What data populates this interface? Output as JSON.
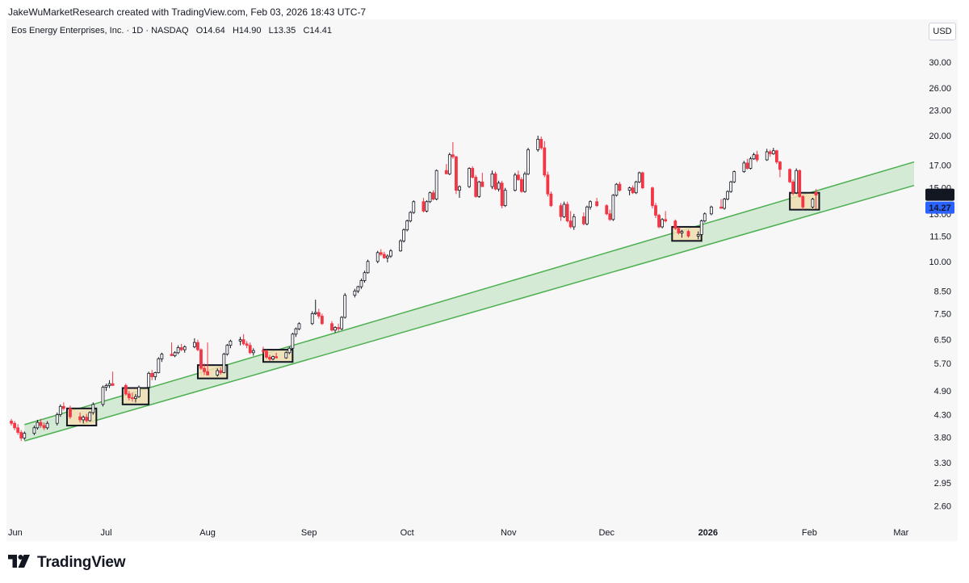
{
  "header": {
    "attribution": "JakeWuMarketResearch created with TradingView.com, Feb 03, 2026 18:43 UTC-7"
  },
  "legend": {
    "symbol_name": "Eos Energy Enterprises, Inc.",
    "interval": "1D",
    "exchange": "NASDAQ",
    "open_label": "O",
    "open": "14.64",
    "high_label": "H",
    "high": "14.90",
    "low_label": "L",
    "low": "13.35",
    "close_label": "C",
    "close": "14.41"
  },
  "currency": "USD",
  "price_tags": {
    "last": "14.41",
    "prev": "14.27"
  },
  "colors": {
    "up": "#ffffff",
    "up_border": "#131722",
    "down": "#f23645",
    "channel_line": "#4caf50",
    "channel_fill": "#c8e6c9",
    "box_fill": "#f3dfb5",
    "box_border": "#131722",
    "last_tag": "#131722",
    "prev_tag": "#2962ff"
  },
  "footer": {
    "brand": "TradingView",
    "logo_icon": "tradingview-logo-icon"
  },
  "chart_data": {
    "type": "candlestick",
    "title": "Eos Energy Enterprises, Inc. · 1D · NASDAQ",
    "y_scale": "log",
    "ylim": [
      2.45,
      33.5
    ],
    "y_ticks": [
      "30.00",
      "26.00",
      "23.00",
      "20.00",
      "17.00",
      "15.00",
      "13.00",
      "11.50",
      "10.00",
      "8.50",
      "7.50",
      "6.50",
      "5.70",
      "4.90",
      "4.30",
      "3.80",
      "3.30",
      "2.95",
      "2.60"
    ],
    "x_ticks": [
      "Jun",
      "Jul",
      "Aug",
      "Sep",
      "Oct",
      "Nov",
      "Dec",
      "2026",
      "Feb",
      "Mar"
    ],
    "x_tick_bold": [
      "2026"
    ],
    "x_tick_dates": [
      "2025-06-01",
      "2025-07-01",
      "2025-08-01",
      "2025-09-01",
      "2025-10-01",
      "2025-11-01",
      "2025-12-01",
      "2026-01-01",
      "2026-02-01",
      "2026-03-01"
    ],
    "xlim": [
      "2025-06-01",
      "2026-03-05"
    ],
    "channel": {
      "lower": {
        "start": [
          "2025-06-06",
          3.72
        ],
        "end": [
          "2026-03-05",
          15.2
        ]
      },
      "upper": {
        "start": [
          "2025-06-06",
          4.07
        ],
        "end": [
          "2026-03-05",
          17.3
        ]
      }
    },
    "highlight_boxes": [
      {
        "from": "2025-06-20",
        "to": "2025-06-27",
        "low": 4.05,
        "high": 4.45
      },
      {
        "from": "2025-07-07",
        "to": "2025-07-13",
        "low": 4.55,
        "high": 4.98
      },
      {
        "from": "2025-07-30",
        "to": "2025-08-06",
        "low": 5.25,
        "high": 5.65
      },
      {
        "from": "2025-08-19",
        "to": "2025-08-26",
        "low": 5.75,
        "high": 6.15
      },
      {
        "from": "2025-12-22",
        "to": "2025-12-29",
        "low": 11.2,
        "high": 12.1
      },
      {
        "from": "2026-01-27",
        "to": "2026-02-03",
        "low": 13.3,
        "high": 14.6
      }
    ],
    "candles": [
      [
        "2025-06-02",
        4.15,
        4.2,
        4.05,
        4.1
      ],
      [
        "2025-06-03",
        4.1,
        4.15,
        3.95,
        4.0
      ],
      [
        "2025-06-04",
        4.0,
        4.08,
        3.85,
        3.9
      ],
      [
        "2025-06-05",
        3.9,
        3.95,
        3.72,
        3.78
      ],
      [
        "2025-06-06",
        3.78,
        3.92,
        3.74,
        3.88
      ],
      [
        "2025-06-09",
        3.88,
        4.05,
        3.84,
        4.0
      ],
      [
        "2025-06-10",
        4.0,
        4.18,
        3.96,
        4.12
      ],
      [
        "2025-06-11",
        4.12,
        4.2,
        4.0,
        4.05
      ],
      [
        "2025-06-12",
        4.05,
        4.12,
        3.95,
        4.0
      ],
      [
        "2025-06-13",
        4.0,
        4.15,
        3.96,
        4.1
      ],
      [
        "2025-06-16",
        4.1,
        4.35,
        4.05,
        4.3
      ],
      [
        "2025-06-17",
        4.3,
        4.55,
        4.25,
        4.5
      ],
      [
        "2025-06-18",
        4.5,
        4.6,
        4.4,
        4.45
      ],
      [
        "2025-06-20",
        4.45,
        4.52,
        4.2,
        4.25
      ],
      [
        "2025-06-23",
        4.25,
        4.35,
        4.12,
        4.18
      ],
      [
        "2025-06-24",
        4.18,
        4.28,
        4.1,
        4.24
      ],
      [
        "2025-06-25",
        4.24,
        4.32,
        4.12,
        4.16
      ],
      [
        "2025-06-26",
        4.16,
        4.38,
        4.14,
        4.35
      ],
      [
        "2025-06-27",
        4.35,
        4.6,
        4.3,
        4.55
      ],
      [
        "2025-06-30",
        4.55,
        5.05,
        4.5,
        5.0
      ],
      [
        "2025-07-01",
        5.0,
        5.1,
        4.9,
        5.05
      ],
      [
        "2025-07-02",
        5.05,
        5.2,
        4.98,
        5.1
      ],
      [
        "2025-07-03",
        5.1,
        5.45,
        5.05,
        5.05
      ],
      [
        "2025-07-07",
        5.05,
        5.1,
        4.78,
        4.82
      ],
      [
        "2025-07-08",
        4.82,
        4.9,
        4.65,
        4.72
      ],
      [
        "2025-07-09",
        4.72,
        4.85,
        4.62,
        4.7
      ],
      [
        "2025-07-10",
        4.7,
        4.82,
        4.6,
        4.75
      ],
      [
        "2025-07-11",
        4.75,
        5.05,
        4.72,
        5.0
      ],
      [
        "2025-07-14",
        5.0,
        5.45,
        4.98,
        5.4
      ],
      [
        "2025-07-15",
        5.4,
        5.5,
        5.2,
        5.3
      ],
      [
        "2025-07-16",
        5.3,
        5.45,
        5.2,
        5.42
      ],
      [
        "2025-07-17",
        5.42,
        5.9,
        5.4,
        5.85
      ],
      [
        "2025-07-18",
        5.85,
        6.05,
        5.75,
        6.0
      ],
      [
        "2025-07-21",
        6.0,
        6.4,
        5.95,
        5.95
      ],
      [
        "2025-07-22",
        5.95,
        6.1,
        5.9,
        6.05
      ],
      [
        "2025-07-23",
        6.05,
        6.3,
        6.0,
        6.22
      ],
      [
        "2025-07-24",
        6.22,
        6.35,
        6.1,
        6.15
      ],
      [
        "2025-07-25",
        6.15,
        6.3,
        6.05,
        6.25
      ],
      [
        "2025-07-28",
        6.25,
        6.55,
        6.2,
        6.4
      ],
      [
        "2025-07-29",
        6.4,
        6.5,
        6.1,
        6.15
      ],
      [
        "2025-07-30",
        6.15,
        6.2,
        5.5,
        5.55
      ],
      [
        "2025-07-31",
        5.55,
        5.7,
        5.35,
        5.45
      ],
      [
        "2025-08-01",
        5.45,
        6.4,
        5.35,
        5.35
      ],
      [
        "2025-08-04",
        5.35,
        5.55,
        5.3,
        5.48
      ],
      [
        "2025-08-05",
        5.48,
        5.58,
        5.36,
        5.42
      ],
      [
        "2025-08-06",
        5.42,
        6.05,
        5.4,
        6.0
      ],
      [
        "2025-08-07",
        6.0,
        6.35,
        5.95,
        6.3
      ],
      [
        "2025-08-08",
        6.3,
        6.5,
        6.2,
        6.45
      ],
      [
        "2025-08-11",
        6.45,
        6.6,
        6.3,
        6.5
      ],
      [
        "2025-08-12",
        6.5,
        6.7,
        6.3,
        6.35
      ],
      [
        "2025-08-13",
        6.35,
        6.45,
        6.2,
        6.3
      ],
      [
        "2025-08-14",
        6.3,
        6.4,
        6.0,
        6.05
      ],
      [
        "2025-08-15",
        6.05,
        6.2,
        5.95,
        6.12
      ],
      [
        "2025-08-18",
        6.12,
        6.25,
        6.0,
        6.1
      ],
      [
        "2025-08-19",
        6.1,
        6.15,
        5.85,
        5.9
      ],
      [
        "2025-08-20",
        5.9,
        5.98,
        5.78,
        5.84
      ],
      [
        "2025-08-21",
        5.84,
        5.95,
        5.8,
        5.92
      ],
      [
        "2025-08-22",
        5.92,
        6.05,
        5.86,
        5.88
      ],
      [
        "2025-08-25",
        5.88,
        6.1,
        5.85,
        6.05
      ],
      [
        "2025-08-26",
        6.05,
        6.25,
        6.0,
        6.2
      ],
      [
        "2025-08-27",
        6.2,
        6.75,
        6.15,
        6.7
      ],
      [
        "2025-08-28",
        6.7,
        6.95,
        6.6,
        6.9
      ],
      [
        "2025-08-29",
        6.9,
        7.15,
        6.85,
        7.1
      ],
      [
        "2025-09-02",
        7.1,
        7.6,
        7.05,
        7.5
      ],
      [
        "2025-09-03",
        7.5,
        8.1,
        7.45,
        7.55
      ],
      [
        "2025-09-04",
        7.55,
        7.7,
        7.3,
        7.4
      ],
      [
        "2025-09-05",
        7.4,
        7.5,
        7.05,
        7.1
      ],
      [
        "2025-09-08",
        7.1,
        7.2,
        6.8,
        6.85
      ],
      [
        "2025-09-09",
        6.85,
        7.0,
        6.75,
        6.95
      ],
      [
        "2025-09-10",
        6.95,
        7.1,
        6.8,
        6.9
      ],
      [
        "2025-09-11",
        6.9,
        7.4,
        6.85,
        7.35
      ],
      [
        "2025-09-12",
        7.35,
        8.4,
        7.3,
        8.3
      ],
      [
        "2025-09-15",
        8.3,
        8.6,
        8.2,
        8.5
      ],
      [
        "2025-09-16",
        8.5,
        8.75,
        8.4,
        8.7
      ],
      [
        "2025-09-17",
        8.7,
        9.1,
        8.6,
        9.0
      ],
      [
        "2025-09-18",
        9.0,
        9.5,
        8.9,
        9.4
      ],
      [
        "2025-09-19",
        9.4,
        10.1,
        9.35,
        10.0
      ],
      [
        "2025-09-22",
        10.0,
        10.6,
        9.9,
        10.5
      ],
      [
        "2025-09-23",
        10.5,
        10.7,
        10.3,
        10.4
      ],
      [
        "2025-09-24",
        10.4,
        10.55,
        10.15,
        10.2
      ],
      [
        "2025-09-25",
        10.2,
        10.4,
        9.95,
        10.3
      ],
      [
        "2025-09-26",
        10.3,
        10.7,
        10.2,
        10.6
      ],
      [
        "2025-09-29",
        10.6,
        11.3,
        10.55,
        11.2
      ],
      [
        "2025-09-30",
        11.2,
        12.0,
        11.1,
        11.9
      ],
      [
        "2025-10-01",
        11.9,
        12.6,
        11.8,
        12.5
      ],
      [
        "2025-10-02",
        12.5,
        13.2,
        12.4,
        13.1
      ],
      [
        "2025-10-03",
        13.1,
        14.0,
        13.0,
        13.9
      ],
      [
        "2025-10-06",
        13.9,
        14.2,
        13.1,
        13.2
      ],
      [
        "2025-10-07",
        13.2,
        14.0,
        13.1,
        13.9
      ],
      [
        "2025-10-08",
        13.9,
        14.7,
        13.8,
        14.6
      ],
      [
        "2025-10-09",
        14.6,
        14.8,
        14.0,
        14.1
      ],
      [
        "2025-10-10",
        14.1,
        16.6,
        14.0,
        16.5
      ],
      [
        "2025-10-13",
        16.5,
        17.1,
        16.3,
        16.2
      ],
      [
        "2025-10-14",
        16.2,
        18.2,
        16.1,
        18.0
      ],
      [
        "2025-10-15",
        18.0,
        19.3,
        17.6,
        17.8
      ],
      [
        "2025-10-16",
        17.8,
        17.9,
        14.5,
        14.8
      ],
      [
        "2025-10-17",
        14.8,
        15.2,
        14.2,
        15.1
      ],
      [
        "2025-10-20",
        15.1,
        16.8,
        15.0,
        16.7
      ],
      [
        "2025-10-21",
        16.7,
        16.9,
        15.8,
        15.9
      ],
      [
        "2025-10-22",
        15.9,
        16.1,
        14.2,
        14.3
      ],
      [
        "2025-10-23",
        14.3,
        15.6,
        14.2,
        15.5
      ],
      [
        "2025-10-24",
        15.5,
        16.3,
        15.2,
        15.1
      ],
      [
        "2025-10-27",
        15.1,
        16.5,
        14.9,
        16.2
      ],
      [
        "2025-10-28",
        16.2,
        16.4,
        14.8,
        14.9
      ],
      [
        "2025-10-29",
        14.9,
        15.6,
        14.7,
        15.4
      ],
      [
        "2025-10-30",
        15.4,
        15.6,
        13.4,
        13.6
      ],
      [
        "2025-10-31",
        13.6,
        15.0,
        13.5,
        14.8
      ],
      [
        "2025-11-03",
        14.8,
        16.3,
        14.7,
        16.1
      ],
      [
        "2025-11-04",
        16.1,
        16.5,
        15.6,
        15.7
      ],
      [
        "2025-11-05",
        15.7,
        15.9,
        14.6,
        14.7
      ],
      [
        "2025-11-06",
        14.7,
        16.4,
        14.6,
        16.2
      ],
      [
        "2025-11-07",
        16.2,
        18.7,
        16.1,
        18.5
      ],
      [
        "2025-11-10",
        18.5,
        20.0,
        18.3,
        19.6
      ],
      [
        "2025-11-11",
        19.6,
        19.9,
        18.5,
        18.7
      ],
      [
        "2025-11-12",
        18.7,
        19.4,
        15.9,
        16.1
      ],
      [
        "2025-11-13",
        16.1,
        16.4,
        14.3,
        14.5
      ],
      [
        "2025-11-14",
        14.5,
        14.7,
        13.5,
        13.6
      ],
      [
        "2025-11-17",
        13.6,
        13.8,
        12.5,
        12.8
      ],
      [
        "2025-11-18",
        12.8,
        13.9,
        12.7,
        13.7
      ],
      [
        "2025-11-19",
        13.7,
        13.9,
        12.4,
        12.5
      ],
      [
        "2025-11-20",
        12.5,
        13.2,
        12.0,
        12.1
      ],
      [
        "2025-11-21",
        12.1,
        13.0,
        11.9,
        12.8
      ],
      [
        "2025-11-24",
        12.8,
        13.1,
        12.2,
        12.3
      ],
      [
        "2025-11-25",
        12.3,
        13.6,
        12.2,
        13.5
      ],
      [
        "2025-11-26",
        13.5,
        14.0,
        13.3,
        13.9
      ],
      [
        "2025-11-28",
        13.9,
        14.2,
        13.5,
        13.6
      ],
      [
        "2025-12-01",
        13.6,
        13.7,
        12.9,
        13.0
      ],
      [
        "2025-12-02",
        13.0,
        13.3,
        12.5,
        12.6
      ],
      [
        "2025-12-03",
        12.6,
        14.5,
        12.5,
        14.4
      ],
      [
        "2025-12-04",
        14.4,
        15.4,
        14.3,
        15.3
      ],
      [
        "2025-12-05",
        15.3,
        15.5,
        14.7,
        14.8
      ],
      [
        "2025-12-08",
        14.8,
        15.1,
        14.4,
        15.0
      ],
      [
        "2025-12-09",
        15.0,
        15.2,
        14.5,
        14.6
      ],
      [
        "2025-12-10",
        14.6,
        15.6,
        14.5,
        15.5
      ],
      [
        "2025-12-11",
        15.5,
        16.4,
        15.4,
        16.3
      ],
      [
        "2025-12-12",
        16.3,
        16.4,
        14.9,
        15.0
      ],
      [
        "2025-12-15",
        15.0,
        15.1,
        13.4,
        13.6
      ],
      [
        "2025-12-16",
        13.6,
        13.8,
        12.7,
        12.9
      ],
      [
        "2025-12-17",
        12.9,
        13.0,
        12.0,
        12.1
      ],
      [
        "2025-12-18",
        12.1,
        12.7,
        12.0,
        12.6
      ],
      [
        "2025-12-19",
        12.6,
        13.2,
        12.4,
        12.5
      ],
      [
        "2025-12-22",
        12.5,
        12.6,
        11.9,
        12.0
      ],
      [
        "2025-12-23",
        12.0,
        12.1,
        11.6,
        11.7
      ],
      [
        "2025-12-24",
        11.7,
        11.9,
        11.4,
        11.8
      ],
      [
        "2025-12-26",
        11.8,
        11.9,
        11.4,
        11.5
      ],
      [
        "2025-12-29",
        11.5,
        11.8,
        11.3,
        11.6
      ],
      [
        "2025-12-30",
        11.6,
        12.6,
        11.5,
        12.5
      ],
      [
        "2025-12-31",
        12.5,
        13.1,
        12.4,
        13.0
      ],
      [
        "2026-01-02",
        13.0,
        13.6,
        12.9,
        13.5
      ],
      [
        "2026-01-05",
        13.5,
        14.1,
        13.4,
        13.4
      ],
      [
        "2026-01-06",
        13.4,
        14.2,
        13.3,
        14.1
      ],
      [
        "2026-01-07",
        14.1,
        14.8,
        14.0,
        14.7
      ],
      [
        "2026-01-08",
        14.7,
        15.6,
        14.6,
        15.5
      ],
      [
        "2026-01-09",
        15.5,
        16.5,
        15.4,
        16.4
      ],
      [
        "2026-01-12",
        16.4,
        17.4,
        16.3,
        17.2
      ],
      [
        "2026-01-13",
        17.2,
        17.6,
        16.6,
        16.7
      ],
      [
        "2026-01-14",
        16.7,
        17.8,
        16.6,
        17.6
      ],
      [
        "2026-01-15",
        17.6,
        18.2,
        17.5,
        18.0
      ],
      [
        "2026-01-16",
        18.0,
        18.4,
        17.3,
        17.5
      ],
      [
        "2026-01-19",
        17.5,
        18.6,
        17.4,
        18.3
      ],
      [
        "2026-01-20",
        18.3,
        18.5,
        17.8,
        18.1
      ],
      [
        "2026-01-21",
        18.1,
        18.7,
        18.0,
        18.4
      ],
      [
        "2026-01-22",
        18.4,
        18.5,
        17.1,
        17.3
      ],
      [
        "2026-01-23",
        17.3,
        17.4,
        15.9,
        16.6
      ],
      [
        "2026-01-26",
        16.6,
        16.7,
        15.4,
        15.5
      ],
      [
        "2026-01-27",
        15.5,
        15.7,
        14.4,
        14.6
      ],
      [
        "2026-01-28",
        14.6,
        16.7,
        14.5,
        16.5
      ],
      [
        "2026-01-29",
        16.5,
        16.6,
        14.2,
        14.3
      ],
      [
        "2026-01-30",
        14.3,
        14.4,
        13.3,
        13.5
      ],
      [
        "2026-02-02",
        13.5,
        14.2,
        13.4,
        14.1
      ],
      [
        "2026-02-03",
        14.64,
        14.9,
        13.35,
        14.41
      ]
    ]
  }
}
